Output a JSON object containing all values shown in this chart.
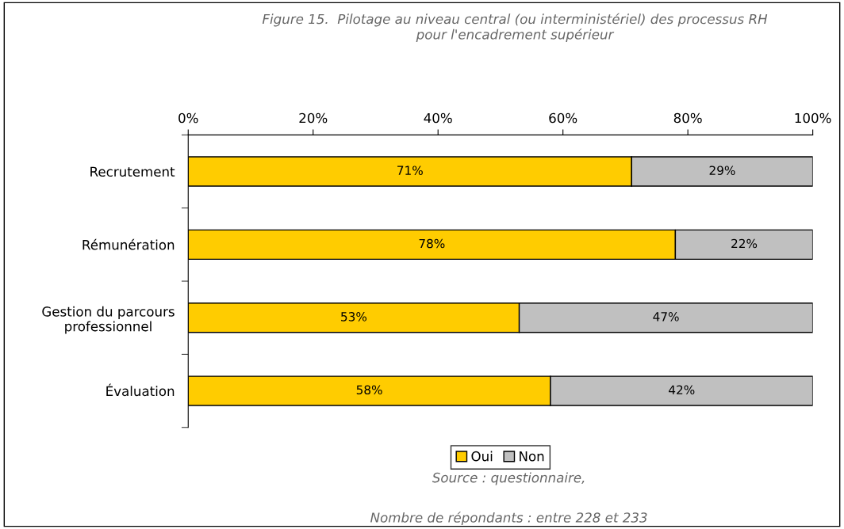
{
  "chart_data": {
    "type": "bar",
    "orientation": "horizontal",
    "stacked": true,
    "title": "Figure 15.  Pilotage au niveau central (ou interministériel) des processus RH\npour l'encadrement supérieur",
    "categories": [
      "Recrutement",
      "Rémunération",
      "Gestion du parcours\nprofessionnel",
      "Évaluation"
    ],
    "series": [
      {
        "name": "Oui",
        "color": "#ffcc00",
        "values": [
          71,
          78,
          53,
          58
        ],
        "value_labels": [
          "71%",
          "78%",
          "53%",
          "58%"
        ]
      },
      {
        "name": "Non",
        "color": "#c0c0c0",
        "values": [
          29,
          22,
          47,
          42
        ],
        "value_labels": [
          "29%",
          "22%",
          "47%",
          "42%"
        ]
      }
    ],
    "xlim": [
      0,
      100
    ],
    "xticks": [
      {
        "value": 0,
        "label": "0%"
      },
      {
        "value": 20,
        "label": "20%"
      },
      {
        "value": 40,
        "label": "40%"
      },
      {
        "value": 60,
        "label": "60%"
      },
      {
        "value": 80,
        "label": "80%"
      },
      {
        "value": 100,
        "label": "100%"
      }
    ],
    "legend": "bottom",
    "grid": false,
    "annotations": [
      "Source : questionnaire,",
      "Nombre de répondants : entre 228 et 233"
    ]
  }
}
